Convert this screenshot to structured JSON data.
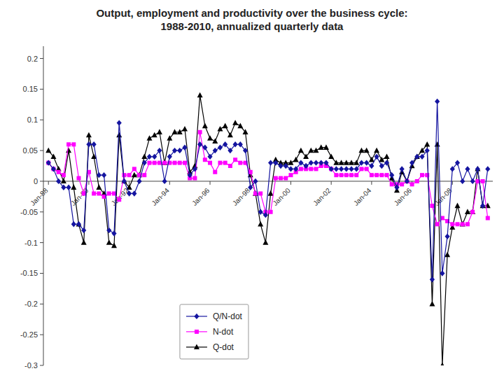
{
  "chart_data": {
    "type": "line",
    "title": "Output, employment and productivity over the business cycle:\n1988-2010, annualized quarterly data",
    "categories": [
      "Jan-88",
      null,
      null,
      null,
      null,
      null,
      null,
      null,
      "Jan-90",
      null,
      null,
      null,
      null,
      null,
      null,
      null,
      "Jan-92",
      null,
      null,
      null,
      null,
      null,
      null,
      null,
      "Jan-94",
      null,
      null,
      null,
      null,
      null,
      null,
      null,
      "Jan-96",
      null,
      null,
      null,
      null,
      null,
      null,
      null,
      "Jan-98",
      null,
      null,
      null,
      null,
      null,
      null,
      null,
      "Jan-00",
      null,
      null,
      null,
      null,
      null,
      null,
      null,
      "Jan-02",
      null,
      null,
      null,
      null,
      null,
      null,
      null,
      "Jan-04",
      null,
      null,
      null,
      null,
      null,
      null,
      null,
      "Jan-06",
      null,
      null,
      null,
      null,
      null,
      null,
      null,
      "Jan-08",
      null,
      null,
      null,
      null,
      null,
      null,
      null
    ],
    "ylim": [
      -0.3,
      0.22
    ],
    "yticks": [
      -0.3,
      -0.25,
      -0.2,
      -0.15,
      -0.1,
      -0.05,
      0,
      0.05,
      0.1,
      0.15,
      0.2
    ],
    "grid": false,
    "legend": "lower center",
    "series": [
      {
        "name": "Q/N-dot",
        "color": "#1515A0",
        "marker": "diamond",
        "values": [
          0.03,
          0.02,
          0.0,
          -0.01,
          -0.01,
          -0.07,
          -0.07,
          -0.08,
          0.06,
          0.06,
          0.01,
          0.01,
          -0.08,
          -0.085,
          0.095,
          0.0,
          -0.02,
          -0.02,
          0.0,
          0.03,
          0.04,
          0.04,
          0.05,
          0.0,
          0.04,
          0.05,
          0.05,
          0.055,
          0.01,
          0.02,
          0.06,
          0.055,
          0.04,
          0.05,
          0.055,
          0.06,
          0.05,
          0.06,
          0.06,
          0.05,
          -0.01,
          0.0,
          -0.05,
          -0.055,
          0.03,
          0.03,
          0.025,
          0.025,
          0.02,
          0.02,
          0.03,
          0.025,
          0.03,
          0.03,
          0.03,
          0.03,
          0.02,
          0.02,
          0.02,
          0.02,
          0.02,
          0.02,
          0.03,
          0.03,
          0.025,
          0.04,
          0.025,
          0.03,
          0.01,
          -0.01,
          0.02,
          0.0,
          0.03,
          0.04,
          0.04,
          0.05,
          -0.16,
          0.13,
          -0.15,
          -0.09,
          0.02,
          0.03,
          0.0,
          0.02,
          0.0,
          0.02,
          -0.04,
          0.02
        ]
      },
      {
        "name": "N-dot",
        "color": "#FF00FF",
        "marker": "square",
        "values": [
          0.03,
          0.02,
          0.015,
          0.01,
          0.06,
          0.06,
          0.005,
          -0.02,
          0.015,
          -0.02,
          -0.02,
          -0.025,
          -0.02,
          -0.02,
          -0.03,
          0.01,
          0.01,
          0.02,
          0.01,
          0.01,
          0.03,
          0.03,
          0.03,
          0.03,
          0.03,
          0.03,
          0.03,
          0.03,
          0.005,
          0.005,
          0.08,
          0.035,
          0.03,
          0.015,
          0.03,
          0.03,
          0.025,
          0.035,
          0.03,
          0.03,
          0.015,
          -0.02,
          -0.02,
          -0.05,
          -0.05,
          0.005,
          0.005,
          0.005,
          0.01,
          0.015,
          0.02,
          0.02,
          0.02,
          0.02,
          0.025,
          0.025,
          0.02,
          0.01,
          0.01,
          0.01,
          0.01,
          0.01,
          0.02,
          0.02,
          0.01,
          0.01,
          0.01,
          0.01,
          -0.005,
          -0.005,
          -0.005,
          0.0,
          -0.005,
          0.0,
          0.01,
          0.01,
          -0.04,
          -0.07,
          -0.06,
          -0.065,
          -0.07,
          -0.07,
          -0.07,
          -0.07,
          -0.05,
          0.0,
          0.0,
          -0.06
        ]
      },
      {
        "name": "Q-dot",
        "color": "#000000",
        "marker": "triangle",
        "values": [
          0.05,
          0.04,
          0.02,
          0.0,
          0.05,
          -0.01,
          -0.07,
          -0.1,
          0.075,
          0.04,
          -0.01,
          -0.02,
          -0.1,
          -0.105,
          0.075,
          0.0,
          -0.01,
          0.01,
          0.01,
          0.04,
          0.07,
          0.075,
          0.08,
          0.03,
          0.07,
          0.08,
          0.08,
          0.085,
          0.015,
          0.025,
          0.14,
          0.09,
          0.07,
          0.065,
          0.085,
          0.09,
          0.075,
          0.095,
          0.09,
          0.08,
          0.01,
          -0.02,
          -0.07,
          -0.1,
          -0.02,
          0.035,
          0.03,
          0.03,
          0.03,
          0.035,
          0.05,
          0.04,
          0.05,
          0.05,
          0.055,
          0.055,
          0.04,
          0.03,
          0.03,
          0.03,
          0.03,
          0.03,
          0.05,
          0.05,
          0.035,
          0.05,
          0.035,
          0.04,
          0.005,
          -0.015,
          0.015,
          0.0,
          0.025,
          0.04,
          0.05,
          0.06,
          -0.2,
          0.06,
          -0.3,
          -0.12,
          -0.075,
          -0.04,
          -0.07,
          -0.05,
          -0.05,
          0.02,
          -0.04,
          -0.04
        ]
      }
    ]
  }
}
